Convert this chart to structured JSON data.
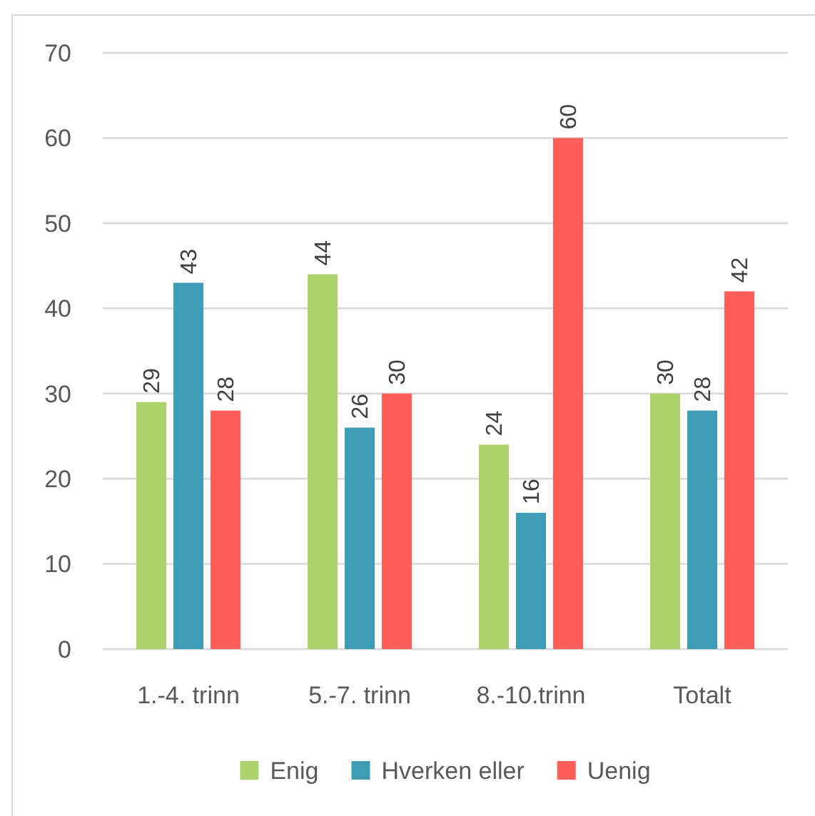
{
  "chart_data": {
    "type": "bar",
    "categories": [
      "1.-4. trinn",
      "5.-7. trinn",
      "8.-10.trinn",
      "Totalt"
    ],
    "series": [
      {
        "name": "Enig",
        "color": "#aed36c",
        "values": [
          29,
          44,
          24,
          30
        ]
      },
      {
        "name": "Hverken eller",
        "color": "#3f9cb5",
        "values": [
          43,
          26,
          16,
          28
        ]
      },
      {
        "name": "Uenig",
        "color": "#ff5f58",
        "values": [
          28,
          30,
          60,
          42
        ]
      }
    ],
    "ylim": [
      0,
      70
    ],
    "yticks": [
      0,
      10,
      20,
      30,
      40,
      50,
      60,
      70
    ],
    "grid": "y",
    "legend": "bottom",
    "data_labels": true
  }
}
